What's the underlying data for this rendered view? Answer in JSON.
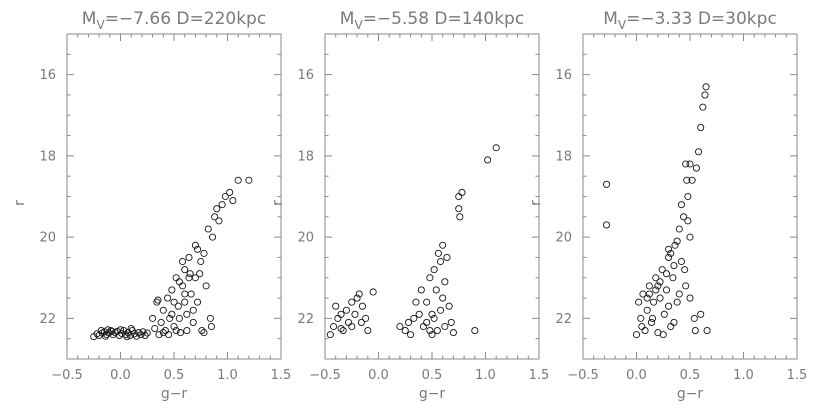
{
  "chart_data": [
    {
      "type": "scatter",
      "title": "M_V=−7.66  D=220kpc",
      "title_main": "M",
      "title_sub": "V",
      "title_rest": "=−7.66  D=220kpc",
      "xlabel": "g−r",
      "ylabel": "r",
      "xlim": [
        -0.5,
        1.5
      ],
      "ylim": [
        23.0,
        15.0
      ],
      "y_inverted": true,
      "x_ticks": [
        "−0.5",
        "0.0",
        "0.5",
        "1.0",
        "1.5"
      ],
      "y_ticks": [
        "16",
        "18",
        "20",
        "22"
      ],
      "points": [
        [
          -0.25,
          22.45
        ],
        [
          -0.22,
          22.38
        ],
        [
          -0.2,
          22.42
        ],
        [
          -0.17,
          22.36
        ],
        [
          -0.15,
          22.33
        ],
        [
          -0.13,
          22.4
        ],
        [
          -0.11,
          22.36
        ],
        [
          -0.09,
          22.3
        ],
        [
          -0.07,
          22.4
        ],
        [
          -0.05,
          22.35
        ],
        [
          -0.03,
          22.32
        ],
        [
          -0.01,
          22.42
        ],
        [
          0.01,
          22.37
        ],
        [
          0.03,
          22.3
        ],
        [
          0.05,
          22.4
        ],
        [
          0.07,
          22.35
        ],
        [
          0.09,
          22.42
        ],
        [
          0.11,
          22.3
        ],
        [
          0.13,
          22.38
        ],
        [
          0.15,
          22.44
        ],
        [
          0.17,
          22.35
        ],
        [
          0.19,
          22.4
        ],
        [
          0.21,
          22.33
        ],
        [
          0.23,
          22.42
        ],
        [
          0.25,
          22.36
        ],
        [
          -0.18,
          22.3
        ],
        [
          -0.14,
          22.44
        ],
        [
          -0.08,
          22.32
        ],
        [
          0.0,
          22.28
        ],
        [
          0.06,
          22.45
        ],
        [
          -0.12,
          22.28
        ],
        [
          0.1,
          22.25
        ],
        [
          0.3,
          22.0
        ],
        [
          0.32,
          22.25
        ],
        [
          0.34,
          21.6
        ],
        [
          0.36,
          22.4
        ],
        [
          0.38,
          22.1
        ],
        [
          0.4,
          21.8
        ],
        [
          0.42,
          22.3
        ],
        [
          0.44,
          21.5
        ],
        [
          0.46,
          22.0
        ],
        [
          0.48,
          21.3
        ],
        [
          0.5,
          22.2
        ],
        [
          0.52,
          21.0
        ],
        [
          0.54,
          21.7
        ],
        [
          0.56,
          22.35
        ],
        [
          0.58,
          21.2
        ],
        [
          0.6,
          20.8
        ],
        [
          0.62,
          21.9
        ],
        [
          0.64,
          20.5
        ],
        [
          0.66,
          21.4
        ],
        [
          0.68,
          22.1
        ],
        [
          0.7,
          20.2
        ],
        [
          0.72,
          21.6
        ],
        [
          0.74,
          20.9
        ],
        [
          0.76,
          22.3
        ],
        [
          0.78,
          20.4
        ],
        [
          0.8,
          21.2
        ],
        [
          0.82,
          19.8
        ],
        [
          0.84,
          22.0
        ],
        [
          0.86,
          20.0
        ],
        [
          0.88,
          19.5
        ],
        [
          0.9,
          19.3
        ],
        [
          0.92,
          19.6
        ],
        [
          0.95,
          19.2
        ],
        [
          0.98,
          19.0
        ],
        [
          1.02,
          18.9
        ],
        [
          1.05,
          19.1
        ],
        [
          1.1,
          18.6
        ],
        [
          1.2,
          18.6
        ],
        [
          0.45,
          22.4
        ],
        [
          0.5,
          21.6
        ],
        [
          0.55,
          21.1
        ],
        [
          0.6,
          21.4
        ],
        [
          0.65,
          20.9
        ],
        [
          0.7,
          21.0
        ],
        [
          0.75,
          20.6
        ],
        [
          0.55,
          22.0
        ],
        [
          0.62,
          22.3
        ],
        [
          0.68,
          21.8
        ],
        [
          0.48,
          21.9
        ],
        [
          0.58,
          20.6
        ],
        [
          0.64,
          21.0
        ],
        [
          0.72,
          20.3
        ],
        [
          0.78,
          22.35
        ],
        [
          0.85,
          22.2
        ],
        [
          0.35,
          21.55
        ],
        [
          0.4,
          22.35
        ],
        [
          0.52,
          22.3
        ],
        [
          0.6,
          21.6
        ]
      ]
    },
    {
      "type": "scatter",
      "title": "M_V=−5.58  D=140kpc",
      "title_main": "M",
      "title_sub": "V",
      "title_rest": "=−5.58  D=140kpc",
      "xlabel": "g−r",
      "ylabel": "r",
      "xlim": [
        -0.5,
        1.5
      ],
      "ylim": [
        23.0,
        15.0
      ],
      "y_inverted": true,
      "x_ticks": [
        "−0.5",
        "0.0",
        "0.5",
        "1.0",
        "1.5"
      ],
      "y_ticks": [
        "16",
        "18",
        "20",
        "22"
      ],
      "points": [
        [
          -0.45,
          22.4
        ],
        [
          -0.42,
          22.2
        ],
        [
          -0.4,
          21.7
        ],
        [
          -0.38,
          22.0
        ],
        [
          -0.35,
          21.9
        ],
        [
          -0.33,
          22.3
        ],
        [
          -0.3,
          21.8
        ],
        [
          -0.28,
          22.1
        ],
        [
          -0.25,
          21.6
        ],
        [
          -0.22,
          21.9
        ],
        [
          -0.2,
          21.5
        ],
        [
          -0.18,
          21.4
        ],
        [
          -0.15,
          21.7
        ],
        [
          -0.12,
          22.0
        ],
        [
          -0.1,
          22.3
        ],
        [
          -0.25,
          22.2
        ],
        [
          -0.35,
          22.25
        ],
        [
          -0.05,
          21.35
        ],
        [
          -0.16,
          22.1
        ],
        [
          0.2,
          22.2
        ],
        [
          0.25,
          22.3
        ],
        [
          0.28,
          22.1
        ],
        [
          0.3,
          22.4
        ],
        [
          0.33,
          22.0
        ],
        [
          0.35,
          21.6
        ],
        [
          0.38,
          21.9
        ],
        [
          0.4,
          21.3
        ],
        [
          0.42,
          22.2
        ],
        [
          0.45,
          21.6
        ],
        [
          0.48,
          21.0
        ],
        [
          0.5,
          21.9
        ],
        [
          0.52,
          20.8
        ],
        [
          0.54,
          21.3
        ],
        [
          0.56,
          20.4
        ],
        [
          0.58,
          20.6
        ],
        [
          0.6,
          20.2
        ],
        [
          0.62,
          21.1
        ],
        [
          0.64,
          20.5
        ],
        [
          0.66,
          21.7
        ],
        [
          0.68,
          22.1
        ],
        [
          0.7,
          22.35
        ],
        [
          0.55,
          22.3
        ],
        [
          0.5,
          22.4
        ],
        [
          0.45,
          22.1
        ],
        [
          0.6,
          21.5
        ],
        [
          0.62,
          22.2
        ],
        [
          0.58,
          21.8
        ],
        [
          0.52,
          22.0
        ],
        [
          0.48,
          22.3
        ],
        [
          0.75,
          19.3
        ],
        [
          0.75,
          19.0
        ],
        [
          0.76,
          19.5
        ],
        [
          0.78,
          18.9
        ],
        [
          0.9,
          22.3
        ],
        [
          1.02,
          18.1
        ],
        [
          1.1,
          17.8
        ]
      ]
    },
    {
      "type": "scatter",
      "title": "M_V=−3.33  D=30kpc",
      "title_main": "M",
      "title_sub": "V",
      "title_rest": "=−3.33  D=30kpc",
      "xlabel": "g−r",
      "ylabel": "r",
      "xlim": [
        -0.5,
        1.5
      ],
      "ylim": [
        23.0,
        15.0
      ],
      "y_inverted": true,
      "x_ticks": [
        "−0.5",
        "0.0",
        "0.5",
        "1.0",
        "1.5"
      ],
      "y_ticks": [
        "16",
        "18",
        "20",
        "22"
      ],
      "points": [
        [
          -0.28,
          18.7
        ],
        [
          -0.28,
          19.7
        ],
        [
          0.0,
          22.4
        ],
        [
          0.02,
          21.6
        ],
        [
          0.04,
          22.0
        ],
        [
          0.06,
          21.4
        ],
        [
          0.08,
          22.3
        ],
        [
          0.1,
          21.8
        ],
        [
          0.12,
          21.2
        ],
        [
          0.14,
          22.1
        ],
        [
          0.16,
          21.6
        ],
        [
          0.18,
          21.0
        ],
        [
          0.2,
          22.35
        ],
        [
          0.22,
          21.5
        ],
        [
          0.24,
          20.8
        ],
        [
          0.26,
          21.9
        ],
        [
          0.28,
          21.3
        ],
        [
          0.3,
          20.5
        ],
        [
          0.32,
          22.2
        ],
        [
          0.34,
          21.0
        ],
        [
          0.36,
          20.2
        ],
        [
          0.38,
          21.6
        ],
        [
          0.4,
          19.8
        ],
        [
          0.42,
          20.6
        ],
        [
          0.44,
          19.5
        ],
        [
          0.46,
          21.2
        ],
        [
          0.48,
          19.0
        ],
        [
          0.5,
          20.0
        ],
        [
          0.52,
          18.6
        ],
        [
          0.54,
          22.0
        ],
        [
          0.56,
          18.3
        ],
        [
          0.58,
          17.9
        ],
        [
          0.6,
          17.3
        ],
        [
          0.62,
          16.8
        ],
        [
          0.64,
          16.5
        ],
        [
          0.65,
          16.3
        ],
        [
          0.66,
          22.3
        ],
        [
          0.05,
          22.2
        ],
        [
          0.1,
          21.5
        ],
        [
          0.15,
          22.0
        ],
        [
          0.2,
          21.2
        ],
        [
          0.25,
          22.4
        ],
        [
          0.3,
          21.7
        ],
        [
          0.35,
          22.1
        ],
        [
          0.4,
          21.4
        ],
        [
          0.45,
          20.8
        ],
        [
          0.5,
          21.5
        ],
        [
          0.55,
          22.3
        ],
        [
          0.6,
          21.9
        ],
        [
          0.12,
          21.4
        ],
        [
          0.18,
          21.3
        ],
        [
          0.22,
          21.1
        ],
        [
          0.28,
          20.9
        ],
        [
          0.32,
          20.4
        ],
        [
          0.38,
          20.1
        ],
        [
          0.42,
          19.2
        ],
        [
          0.47,
          18.6
        ],
        [
          0.5,
          18.2
        ],
        [
          0.46,
          18.2
        ],
        [
          0.3,
          20.3
        ],
        [
          0.48,
          19.6
        ],
        [
          0.35,
          20.7
        ]
      ]
    }
  ]
}
